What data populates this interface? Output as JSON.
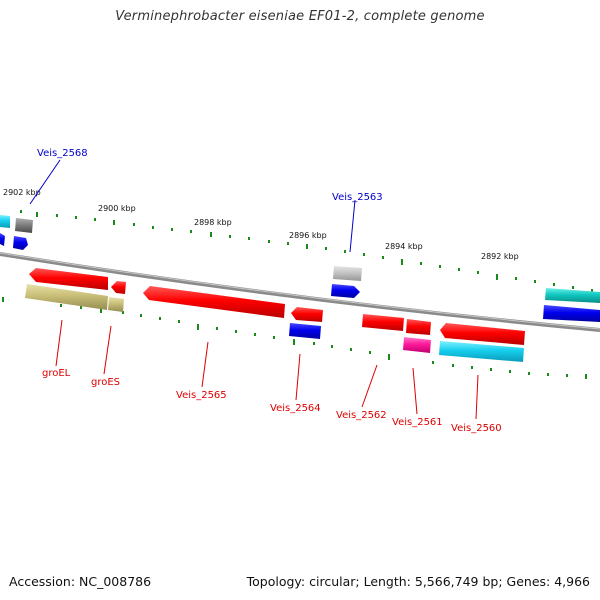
{
  "header": {
    "title": "Verminephrobacter eiseniae EF01-2, complete genome"
  },
  "footer": {
    "accession": "Accession: NC_008786",
    "summary": "Topology: circular; Length: 5,566,749 bp; Genes: 4,966"
  },
  "scale": {
    "ticks": [
      "2902 kbp",
      "2900 kbp",
      "2898 kbp",
      "2896 kbp",
      "2894 kbp",
      "2892 kbp"
    ]
  },
  "colors": {
    "forward_gene": "#ff0000",
    "reverse_gene": "#ff0000",
    "cds_blue": "#0000ee",
    "cds_cyan": "#00c8e6",
    "cds_teal": "#10c8c0",
    "cds_olive": "#c8be78",
    "cds_magenta": "#ff1a9c",
    "cds_gray": "#808080",
    "cds_lightgray": "#c0c0c0",
    "backbone": "#888888",
    "tick": "#1a8a1a",
    "label_red": "#dd0000",
    "label_blue": "#0000cc"
  },
  "genes": {
    "top_labels": [
      {
        "id": "veis-2568",
        "text": "Veis_2568"
      },
      {
        "id": "veis-2563",
        "text": "Veis_2563"
      }
    ],
    "bottom_labels": [
      {
        "id": "groel",
        "text": "groEL"
      },
      {
        "id": "groes",
        "text": "groES"
      },
      {
        "id": "veis-2565",
        "text": "Veis_2565"
      },
      {
        "id": "veis-2564",
        "text": "Veis_2564"
      },
      {
        "id": "veis-2562",
        "text": "Veis_2562"
      },
      {
        "id": "veis-2561",
        "text": "Veis_2561"
      },
      {
        "id": "veis-2560",
        "text": "Veis_2560"
      }
    ]
  }
}
